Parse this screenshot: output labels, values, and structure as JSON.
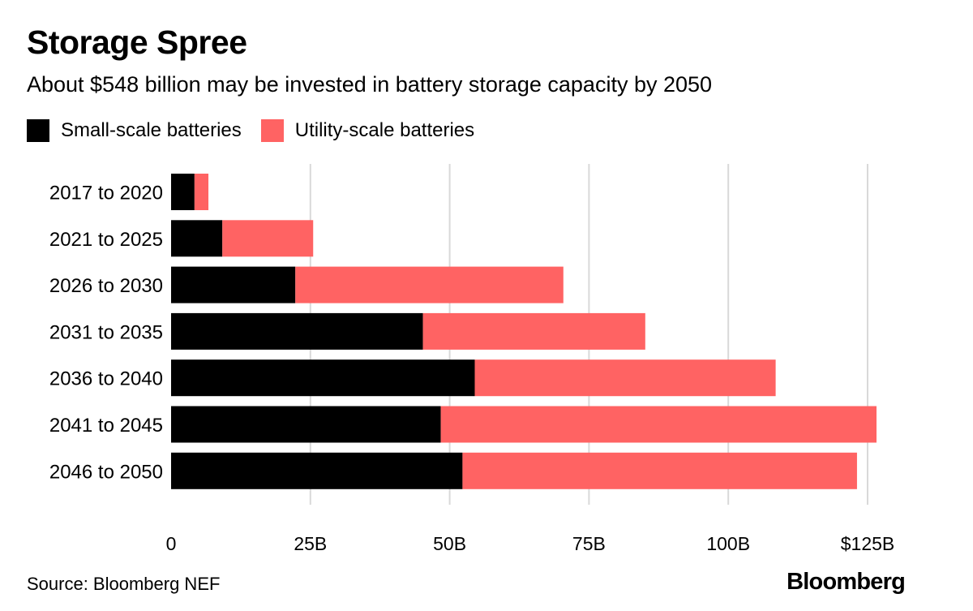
{
  "chart_data": {
    "type": "bar",
    "orientation": "horizontal",
    "stacked": true,
    "title": "Storage Spree",
    "subtitle": "About $548 billion may be invested in battery storage capacity by 2050",
    "categories": [
      "2017 to 2020",
      "2021 to 2025",
      "2026 to 2030",
      "2031 to 2035",
      "2036 to 2040",
      "2041 to 2045",
      "2046 to 2050"
    ],
    "series": [
      {
        "name": "Small-scale batteries",
        "color": "#000000",
        "values": [
          4.2,
          9.2,
          22.3,
          45.2,
          54.5,
          48.4,
          52.3
        ]
      },
      {
        "name": "Utility-scale batteries",
        "color": "#ff6363",
        "values": [
          2.5,
          16.3,
          48.1,
          39.9,
          54.0,
          78.2,
          70.8
        ]
      }
    ],
    "xlim": [
      0,
      125
    ],
    "xticks": [
      0,
      25,
      50,
      75,
      100,
      125
    ],
    "xtick_labels": [
      "0",
      "25B",
      "50B",
      "75B",
      "100B",
      "$125B"
    ],
    "grid": true,
    "legend_position": "top-left",
    "xlabel": "",
    "ylabel": ""
  },
  "source": "Source: Bloomberg NEF",
  "brand": "Bloomberg"
}
